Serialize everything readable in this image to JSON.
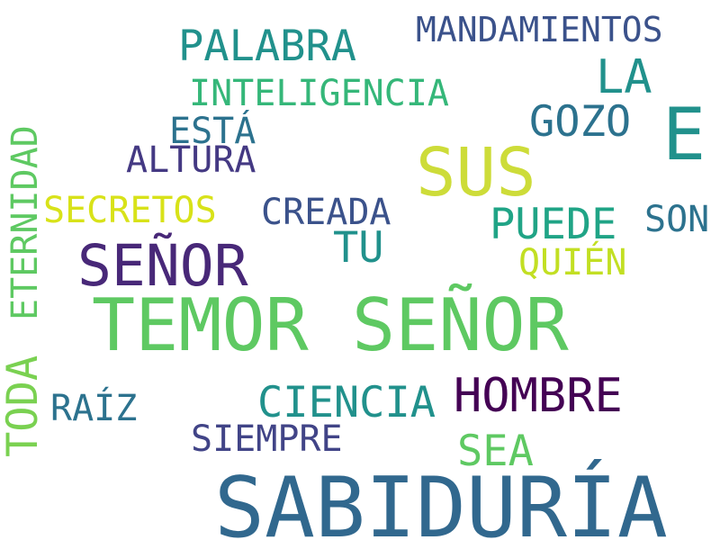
{
  "words": [
    {
      "text": "SABIDURÍA",
      "color": "#31688e"
    },
    {
      "text": "TEMOR SEÑOR",
      "color": "#5ec962"
    },
    {
      "text": "SEÑOR",
      "color": "#482878"
    },
    {
      "text": "SUS",
      "color": "#cddc39"
    },
    {
      "text": "E",
      "color": "#21918c"
    },
    {
      "text": "HOMBRE",
      "color": "#440154"
    },
    {
      "text": "PALABRA",
      "color": "#21918c"
    },
    {
      "text": "MANDAMIENTOS",
      "color": "#3b528b"
    },
    {
      "text": "LA",
      "color": "#21918c"
    },
    {
      "text": "INTELIGENCIA",
      "color": "#35b779"
    },
    {
      "text": "GOZO",
      "color": "#2c728e"
    },
    {
      "text": "ESTÁ",
      "color": "#2c728e"
    },
    {
      "text": "ALTURA",
      "color": "#443983"
    },
    {
      "text": "SECRETOS",
      "color": "#d8e219"
    },
    {
      "text": "CREADA",
      "color": "#3b528b"
    },
    {
      "text": "TU",
      "color": "#21918c"
    },
    {
      "text": "PUEDE",
      "color": "#20a486"
    },
    {
      "text": "SON",
      "color": "#2c728e"
    },
    {
      "text": "QUIÉN",
      "color": "#c2df23"
    },
    {
      "text": "ETERNIDAD",
      "color": "#5ec962"
    },
    {
      "text": "TODA",
      "color": "#7ad151"
    },
    {
      "text": "RAÍZ",
      "color": "#2c728e"
    },
    {
      "text": "CIENCIA",
      "color": "#21918c"
    },
    {
      "text": "SIEMPRE",
      "color": "#414487"
    },
    {
      "text": "SEA",
      "color": "#5ec962"
    }
  ]
}
